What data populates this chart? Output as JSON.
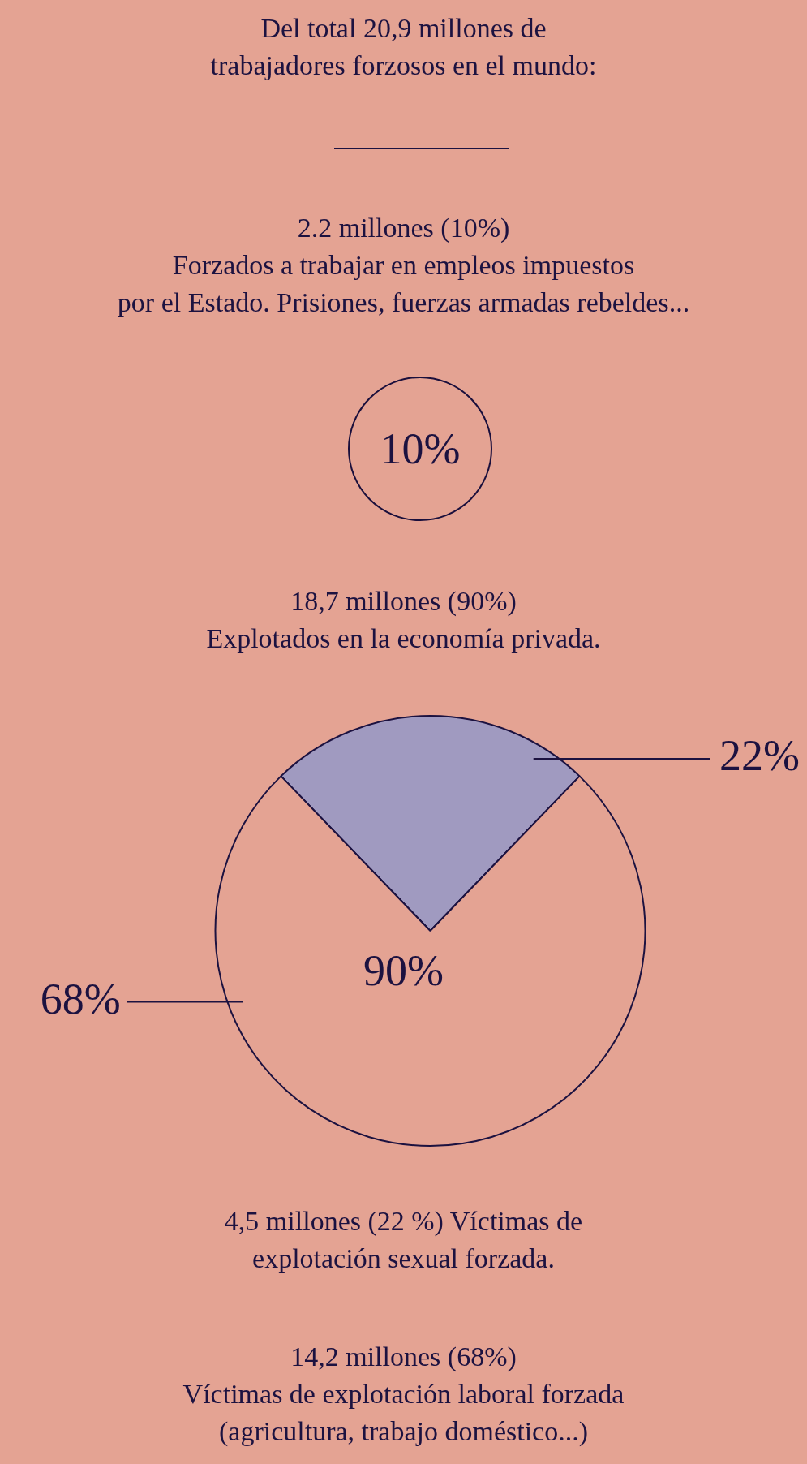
{
  "chart_data": [
    {
      "type": "other",
      "title": "Del total 20,9 millones de\ntrabajadores forzosos en el mundo:",
      "subtitle": "2.2 millones (10%)\nForzados a trabajar en empleos impuestos\npor el Estado. Prisiones, fuerzas armadas rebeldes...",
      "values": [
        10
      ],
      "value_labels": [
        "10%"
      ],
      "colors": [
        "#1a0f3c"
      ]
    },
    {
      "type": "pie",
      "title": "18,7 millones (90%)\nExplotados en la economía privada.",
      "categories": [
        null,
        null
      ],
      "values": [
        22,
        68
      ],
      "colors": [
        "#a09ac0",
        "#e4a393"
      ],
      "value_labels": [
        "22%",
        "68%"
      ],
      "annotations": [
        "90%",
        "4,5 millones (22 %) Víctimas de\nexplotación sexual forzada.",
        "14,2 millones (68%)\nVíctimas de explotación laboral forzada\n(agricultura, trabajo doméstico...)"
      ]
    }
  ]
}
